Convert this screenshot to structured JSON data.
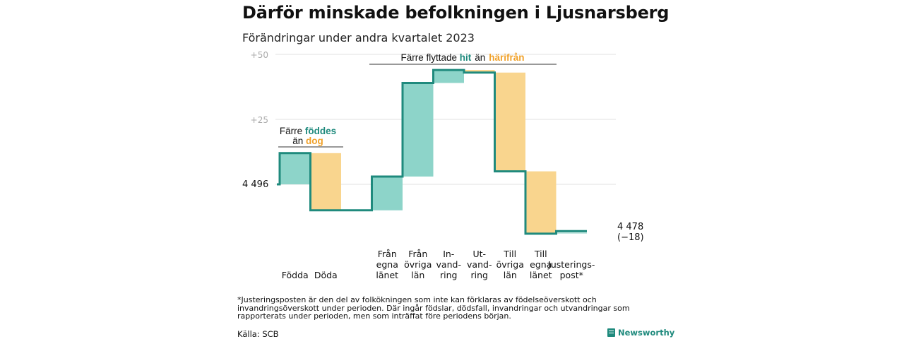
{
  "title": "Därför minskade befolkningen i Ljusnarsberg",
  "subtitle": "Förändringar under andra kvartalet 2023",
  "colors": {
    "teal": "#1f8a7d",
    "teal_fill": "#8dd4c9",
    "orange": "#f0a12a",
    "orange_fill": "#f9d58e"
  },
  "chart_data": {
    "type": "waterfall",
    "start": {
      "value": 4496,
      "label": "4  496"
    },
    "end": {
      "value": 4478,
      "label": "4 478",
      "change_label": "(−18)"
    },
    "y_ticks": [
      {
        "offset": 50,
        "label": "+50"
      },
      {
        "offset": 25,
        "label": "+25"
      }
    ],
    "steps": [
      {
        "label": [
          "Födda"
        ],
        "change": 12,
        "kind": "inflow"
      },
      {
        "label": [
          "Döda"
        ],
        "change": -22,
        "kind": "outflow"
      },
      {
        "label": [],
        "change": 0,
        "kind": "gap"
      },
      {
        "label": [
          "Från",
          "egna",
          "länet"
        ],
        "change": 13,
        "kind": "inflow"
      },
      {
        "label": [
          "Från",
          "övriga",
          "län"
        ],
        "change": 36,
        "kind": "inflow"
      },
      {
        "label": [
          "In-",
          "vand-",
          "ring"
        ],
        "change": 5,
        "kind": "inflow"
      },
      {
        "label": [
          "Ut-",
          "vand-",
          "ring"
        ],
        "change": -1,
        "kind": "outflow"
      },
      {
        "label": [
          "Till",
          "övriga",
          "län"
        ],
        "change": -38,
        "kind": "outflow"
      },
      {
        "label": [
          "Till",
          "egna",
          "länet"
        ],
        "change": -24,
        "kind": "outflow"
      },
      {
        "label": [
          "Justerings-",
          "post*"
        ],
        "change": 1,
        "kind": "adjustment"
      }
    ],
    "annotations": [
      {
        "lines": [
          [
            "Färre ",
            "födde",
            "s"
          ],
          [
            "än ",
            "dog",
            ""
          ]
        ]
      },
      {
        "lines": [
          [
            "Färre flyttade ",
            "hit",
            "  än ",
            "härifrån"
          ]
        ]
      }
    ]
  },
  "annotation_text": {
    "a1_l1_pre": "Färre ",
    "a1_l1_hl": "föddes",
    "a1_l2_pre": "än ",
    "a1_l2_hl": "dog",
    "a2_pre": "Färre flyttade ",
    "a2_hl1": "hit",
    "a2_mid": "än",
    "a2_hl2": "härifrån"
  },
  "footnote": "*Justeringsposten är den del av folkökningen som inte kan förklaras av födelseöverskott och invandringsöverskott under perioden. Där ingår födslar, dödsfall, invandringar och utvandringar som rapporterats under perioden, men som inträffat före periodens början.",
  "source": "Källa: SCB",
  "brand": "Newsworthy"
}
